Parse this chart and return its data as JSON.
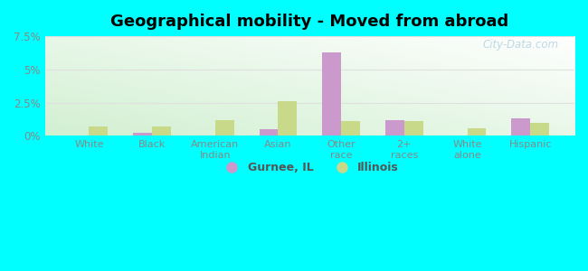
{
  "title": "Geographical mobility - Moved from abroad",
  "categories": [
    "White",
    "Black",
    "American\nIndian",
    "Asian",
    "Other\nrace",
    "2+\nraces",
    "White\nalone",
    "Hispanic"
  ],
  "gurnee_values": [
    0.0,
    0.2,
    0.0,
    0.5,
    6.3,
    1.2,
    0.0,
    1.3
  ],
  "illinois_values": [
    0.7,
    0.7,
    1.2,
    2.6,
    1.1,
    1.1,
    0.6,
    1.0
  ],
  "gurnee_color": "#cc99cc",
  "illinois_color": "#c8d98a",
  "ylim": [
    0,
    7.5
  ],
  "yticks": [
    0,
    2.5,
    5.0,
    7.5
  ],
  "ytick_labels": [
    "0%",
    "2.5%",
    "5%",
    "7.5%"
  ],
  "legend_labels": [
    "Gurnee, IL",
    "Illinois"
  ],
  "outer_background": "#00ffff",
  "bar_width": 0.3,
  "watermark": "City-Data.com",
  "grid_color": "#dddddd",
  "tick_color": "#888888",
  "title_fontsize": 13
}
